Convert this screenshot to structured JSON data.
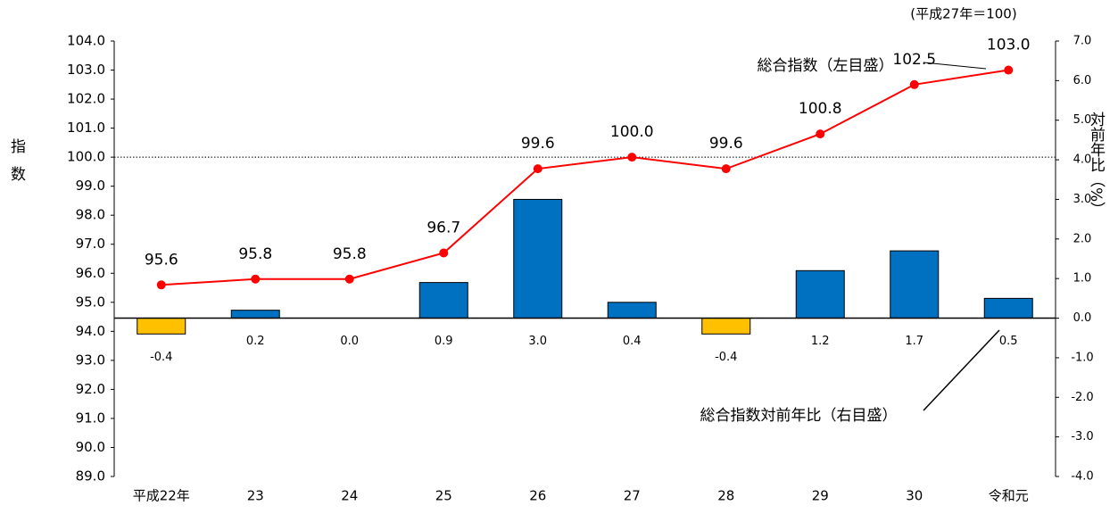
{
  "chart_data": {
    "type": "bar-line",
    "note": "(平成27年＝100)",
    "ylabel": "指数",
    "y2label": "対前年比（%）",
    "categories": [
      "平成22年",
      "23",
      "24",
      "25",
      "26",
      "27",
      "28",
      "29",
      "30",
      "令和元"
    ],
    "ylim": [
      89,
      104
    ],
    "yticks": [
      {
        "value": 89,
        "label": "89.0"
      },
      {
        "value": 90,
        "label": "90.0"
      },
      {
        "value": 91,
        "label": "91.0"
      },
      {
        "value": 92,
        "label": "92.0"
      },
      {
        "value": 93,
        "label": "93.0"
      },
      {
        "value": 94,
        "label": "94.0"
      },
      {
        "value": 95,
        "label": "95.0"
      },
      {
        "value": 96,
        "label": "96.0"
      },
      {
        "value": 97,
        "label": "97.0"
      },
      {
        "value": 98,
        "label": "98.0"
      },
      {
        "value": 99,
        "label": "99.0"
      },
      {
        "value": 100,
        "label": "100.0"
      },
      {
        "value": 101,
        "label": "101.0"
      },
      {
        "value": 102,
        "label": "102.0"
      },
      {
        "value": 103,
        "label": "103.0"
      },
      {
        "value": 104,
        "label": "104.0"
      }
    ],
    "y2lim": [
      -4,
      7
    ],
    "y2ticks": [
      {
        "value": -4,
        "label": "-4.0"
      },
      {
        "value": -3,
        "label": "-3.0"
      },
      {
        "value": -2,
        "label": "-2.0"
      },
      {
        "value": -1,
        "label": "-1.0"
      },
      {
        "value": 0,
        "label": "0.0"
      },
      {
        "value": 1,
        "label": "1.0"
      },
      {
        "value": 2,
        "label": "2.0"
      },
      {
        "value": 3,
        "label": "3.0"
      },
      {
        "value": 4,
        "label": "4.0"
      },
      {
        "value": 5,
        "label": "5.0"
      },
      {
        "value": 6,
        "label": "6.0"
      },
      {
        "value": 7,
        "label": "7.0"
      }
    ],
    "reference_line": 100,
    "series": [
      {
        "name": "総合指数（左目盛）",
        "type": "line",
        "axis": "y",
        "color": "#ff0000",
        "values": [
          95.6,
          95.8,
          95.8,
          96.7,
          99.6,
          100.0,
          99.6,
          100.8,
          102.5,
          103.0
        ],
        "value_labels": [
          "95.6",
          "95.8",
          "95.8",
          "96.7",
          "99.6",
          "100.0",
          "99.6",
          "100.8",
          "102.5",
          "103.0"
        ]
      },
      {
        "name": "総合指数対前年比（右目盛）",
        "type": "bar",
        "axis": "y2",
        "color": "#0070c0",
        "negative_color": "#ffc000",
        "values": [
          -0.4,
          0.2,
          0.0,
          0.9,
          3.0,
          0.4,
          -0.4,
          1.2,
          1.7,
          0.5
        ],
        "value_labels": [
          "-0.4",
          "0.2",
          "0.0",
          "0.9",
          "3.0",
          "0.4",
          "-0.4",
          "1.2",
          "1.7",
          "0.5"
        ]
      }
    ]
  }
}
